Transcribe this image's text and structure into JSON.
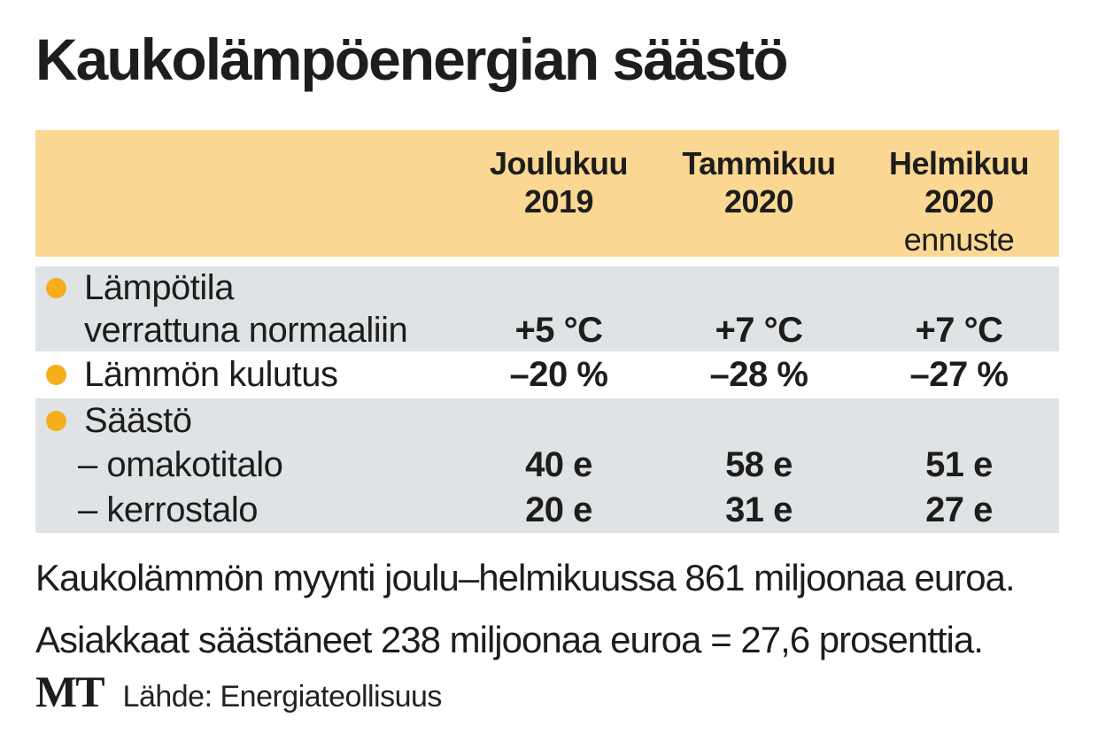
{
  "title": "Kaukolämpöenergian säästö",
  "colors": {
    "header_band": "#FAD893",
    "row_band": "#E0E3E5",
    "bullet": "#F5AE1C",
    "text": "#1D1D1B"
  },
  "table": {
    "col_headers": [
      {
        "month": "Joulukuu",
        "year": "2019",
        "note": ""
      },
      {
        "month": "Tammikuu",
        "year": "2020",
        "note": ""
      },
      {
        "month": "Helmikuu",
        "year": "2020",
        "note": "ennuste"
      }
    ],
    "rows": {
      "temperature": {
        "label_line1": "Lämpötila",
        "label_line2": "verrattuna normaaliin",
        "values": [
          "+5 °C",
          "+7 °C",
          "+7 °C"
        ]
      },
      "consumption": {
        "label": "Lämmön kulutus",
        "values": [
          "–20 %",
          "–28 %",
          "–27 %"
        ]
      },
      "savings": {
        "label": "Säästö",
        "sub_rows": [
          {
            "label": "– omakotitalo",
            "values": [
              "40 e",
              "58 e",
              "51 e"
            ]
          },
          {
            "label": "– kerrostalo",
            "values": [
              "20 e",
              "31 e",
              "27 e"
            ]
          }
        ]
      }
    }
  },
  "notes": {
    "line1": "Kaukolämmön myynti joulu–helmikuussa 861 miljoonaa euroa.",
    "line2": "Asiakkaat säästäneet 238 miljoonaa euroa = 27,6 prosenttia."
  },
  "footer": {
    "logo": "MT",
    "source": "Lähde: Energiateollisuus"
  },
  "chart_data": {
    "type": "table",
    "title": "Kaukolämpöenergian säästö",
    "columns": [
      "Joulukuu 2019",
      "Tammikuu 2020",
      "Helmikuu 2020 ennuste"
    ],
    "rows": [
      {
        "label": "Lämpötila verrattuna normaaliin",
        "values": [
          "+5 °C",
          "+7 °C",
          "+7 °C"
        ]
      },
      {
        "label": "Lämmön kulutus",
        "values": [
          "–20 %",
          "–28 %",
          "–27 %"
        ]
      },
      {
        "label": "Säästö – omakotitalo",
        "values": [
          "40 e",
          "58 e",
          "51 e"
        ]
      },
      {
        "label": "Säästö – kerrostalo",
        "values": [
          "20 e",
          "31 e",
          "27 e"
        ]
      }
    ],
    "notes": [
      "Kaukolämmön myynti joulu–helmikuussa 861 miljoonaa euroa.",
      "Asiakkaat säästäneet 238 miljoonaa euroa = 27,6 prosenttia."
    ],
    "source": "Lähde: Energiateollisuus",
    "legend_position": "none",
    "grid": false
  }
}
